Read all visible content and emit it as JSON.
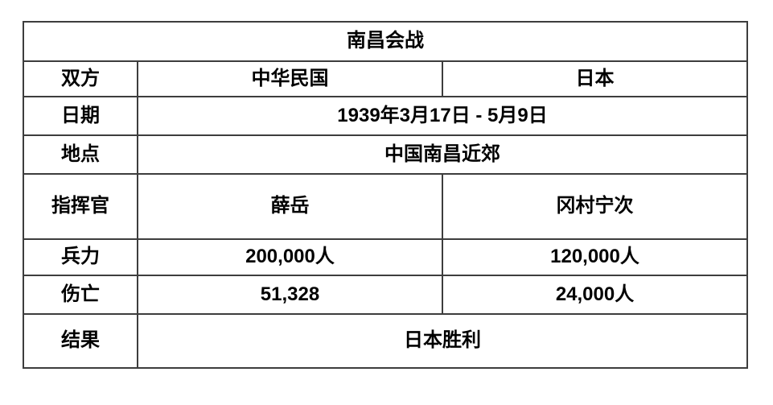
{
  "table": {
    "title": "南昌会战",
    "sides": {
      "label": "双方",
      "china": "中华民国",
      "japan": "日本"
    },
    "date": {
      "label": "日期",
      "value": "1939年3月17日 - 5月9日"
    },
    "location": {
      "label": "地点",
      "value": "中国南昌近郊"
    },
    "commanders": {
      "label": "指挥官",
      "china": "薛岳",
      "japan": "冈村宁次"
    },
    "strength": {
      "label": "兵力",
      "china": "200,000人",
      "japan": "120,000人"
    },
    "casualties": {
      "label": "伤亡",
      "china": "51,328",
      "japan": "24,000人"
    },
    "result": {
      "label": "结果",
      "value": "日本胜利"
    }
  },
  "colors": {
    "border": "#3d3d3d",
    "text": "#000000",
    "background": "#ffffff"
  }
}
